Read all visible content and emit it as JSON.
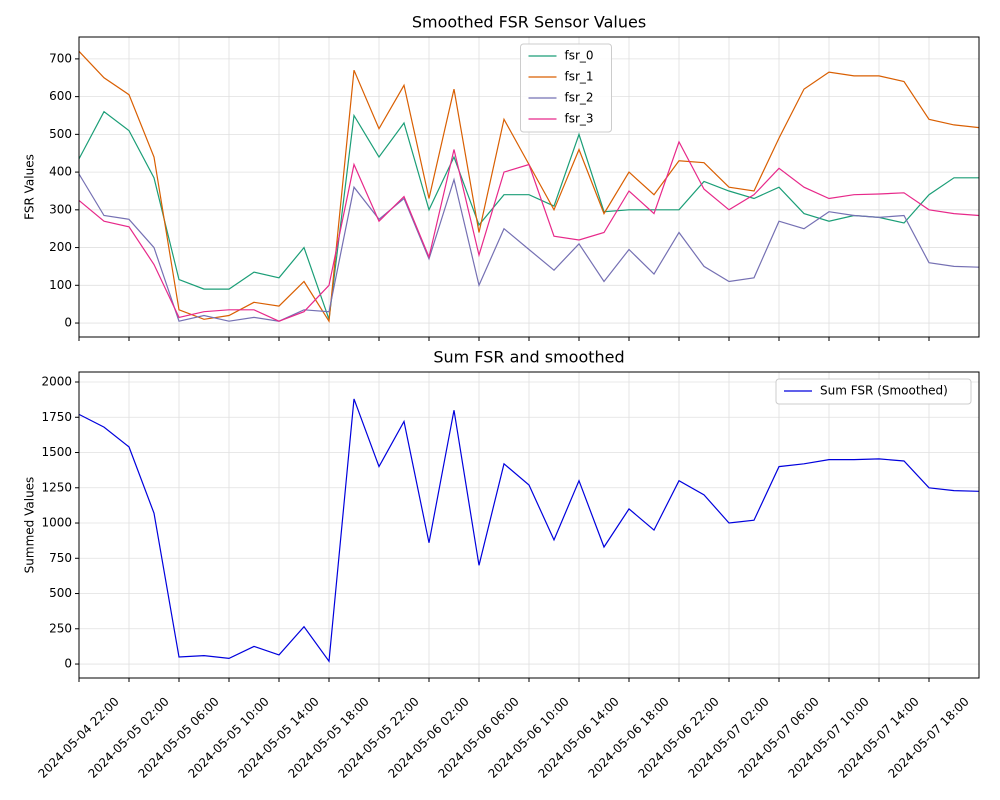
{
  "chart_data": [
    {
      "type": "line",
      "title": "Smoothed FSR Sensor Values",
      "y_label": "FSR Values",
      "x": [
        "2024-05-04 22:00",
        "2024-05-05 00:00",
        "2024-05-05 02:00",
        "2024-05-05 04:00",
        "2024-05-05 06:00",
        "2024-05-05 08:00",
        "2024-05-05 10:00",
        "2024-05-05 12:00",
        "2024-05-05 14:00",
        "2024-05-05 16:00",
        "2024-05-05 18:00",
        "2024-05-05 20:00",
        "2024-05-05 22:00",
        "2024-05-06 00:00",
        "2024-05-06 02:00",
        "2024-05-06 04:00",
        "2024-05-06 06:00",
        "2024-05-06 08:00",
        "2024-05-06 10:00",
        "2024-05-06 12:00",
        "2024-05-06 14:00",
        "2024-05-06 16:00",
        "2024-05-06 18:00",
        "2024-05-06 20:00",
        "2024-05-06 22:00",
        "2024-05-07 00:00",
        "2024-05-07 02:00",
        "2024-05-07 04:00",
        "2024-05-07 06:00",
        "2024-05-07 08:00",
        "2024-05-07 10:00",
        "2024-05-07 12:00",
        "2024-05-07 14:00",
        "2024-05-07 16:00",
        "2024-05-07 18:00",
        "2024-05-07 20:00",
        "2024-05-07 22:00"
      ],
      "series": [
        {
          "name": "fsr_0",
          "color": "#1b9e77",
          "values": [
            435,
            560,
            510,
            385,
            115,
            90,
            90,
            135,
            120,
            200,
            10,
            550,
            440,
            530,
            300,
            440,
            260,
            340,
            340,
            310,
            500,
            295,
            300,
            300,
            300,
            375,
            350,
            330,
            360,
            290,
            270,
            285,
            280,
            265,
            340,
            385,
            385
          ]
        },
        {
          "name": "fsr_1",
          "color": "#d95f02",
          "values": [
            720,
            650,
            605,
            440,
            35,
            10,
            20,
            55,
            45,
            110,
            5,
            670,
            515,
            630,
            330,
            620,
            240,
            540,
            420,
            300,
            460,
            290,
            400,
            340,
            430,
            425,
            360,
            350,
            490,
            620,
            665,
            655,
            655,
            640,
            540,
            525,
            518
          ]
        },
        {
          "name": "fsr_2",
          "color": "#7570b3",
          "values": [
            395,
            285,
            275,
            200,
            5,
            20,
            5,
            15,
            5,
            35,
            30,
            360,
            275,
            330,
            170,
            380,
            100,
            250,
            195,
            140,
            210,
            110,
            195,
            130,
            240,
            150,
            110,
            120,
            270,
            250,
            295,
            285,
            280,
            285,
            160,
            150,
            148
          ]
        },
        {
          "name": "fsr_3",
          "color": "#e7298a",
          "values": [
            325,
            270,
            255,
            155,
            15,
            30,
            35,
            35,
            5,
            30,
            100,
            420,
            270,
            335,
            175,
            460,
            180,
            400,
            420,
            230,
            220,
            240,
            350,
            290,
            480,
            355,
            300,
            340,
            410,
            360,
            330,
            340,
            342,
            345,
            300,
            290,
            285
          ]
        }
      ],
      "xlim": [
        "2024-05-04 22:00",
        "2024-05-07 22:00"
      ],
      "xticks": [
        "2024-05-04 22:00",
        "2024-05-05 02:00",
        "2024-05-05 06:00",
        "2024-05-05 10:00",
        "2024-05-05 14:00",
        "2024-05-05 18:00",
        "2024-05-05 22:00",
        "2024-05-06 02:00",
        "2024-05-06 06:00",
        "2024-05-06 10:00",
        "2024-05-06 14:00",
        "2024-05-06 18:00",
        "2024-05-06 22:00",
        "2024-05-07 02:00",
        "2024-05-07 06:00",
        "2024-05-07 10:00",
        "2024-05-07 14:00",
        "2024-05-07 18:00"
      ],
      "ylim": [
        -37,
        758
      ],
      "yticks": [
        0,
        100,
        200,
        300,
        400,
        500,
        600,
        700
      ],
      "grid": true,
      "legend": "upper center"
    },
    {
      "type": "line",
      "title": "Sum FSR and smoothed",
      "y_label": "Summed Values",
      "x": [
        "2024-05-04 22:00",
        "2024-05-05 00:00",
        "2024-05-05 02:00",
        "2024-05-05 04:00",
        "2024-05-05 06:00",
        "2024-05-05 08:00",
        "2024-05-05 10:00",
        "2024-05-05 12:00",
        "2024-05-05 14:00",
        "2024-05-05 16:00",
        "2024-05-05 18:00",
        "2024-05-05 20:00",
        "2024-05-05 22:00",
        "2024-05-06 00:00",
        "2024-05-06 02:00",
        "2024-05-06 04:00",
        "2024-05-06 06:00",
        "2024-05-06 08:00",
        "2024-05-06 10:00",
        "2024-05-06 12:00",
        "2024-05-06 14:00",
        "2024-05-06 16:00",
        "2024-05-06 18:00",
        "2024-05-06 20:00",
        "2024-05-06 22:00",
        "2024-05-07 00:00",
        "2024-05-07 02:00",
        "2024-05-07 04:00",
        "2024-05-07 06:00",
        "2024-05-07 08:00",
        "2024-05-07 10:00",
        "2024-05-07 12:00",
        "2024-05-07 14:00",
        "2024-05-07 16:00",
        "2024-05-07 18:00",
        "2024-05-07 20:00",
        "2024-05-07 22:00"
      ],
      "series": [
        {
          "name": "Sum FSR (Smoothed)",
          "color": "#0000dd",
          "values": [
            1770,
            1680,
            1540,
            1070,
            50,
            60,
            40,
            125,
            65,
            265,
            20,
            1880,
            1400,
            1720,
            860,
            1800,
            700,
            1420,
            1270,
            880,
            1300,
            830,
            1100,
            950,
            1300,
            1200,
            1000,
            1020,
            1400,
            1420,
            1450,
            1450,
            1455,
            1440,
            1250,
            1230,
            1225
          ]
        }
      ],
      "xlim": [
        "2024-05-04 22:00",
        "2024-05-07 22:00"
      ],
      "xticks": [
        "2024-05-04 22:00",
        "2024-05-05 02:00",
        "2024-05-05 06:00",
        "2024-05-05 10:00",
        "2024-05-05 14:00",
        "2024-05-05 18:00",
        "2024-05-05 22:00",
        "2024-05-06 02:00",
        "2024-05-06 06:00",
        "2024-05-06 10:00",
        "2024-05-06 14:00",
        "2024-05-06 18:00",
        "2024-05-06 22:00",
        "2024-05-07 02:00",
        "2024-05-07 06:00",
        "2024-05-07 10:00",
        "2024-05-07 14:00",
        "2024-05-07 18:00"
      ],
      "ylim": [
        -99,
        2071
      ],
      "yticks": [
        0,
        250,
        500,
        750,
        1000,
        1250,
        1500,
        1750,
        2000
      ],
      "grid": true,
      "legend": "upper right"
    }
  ]
}
